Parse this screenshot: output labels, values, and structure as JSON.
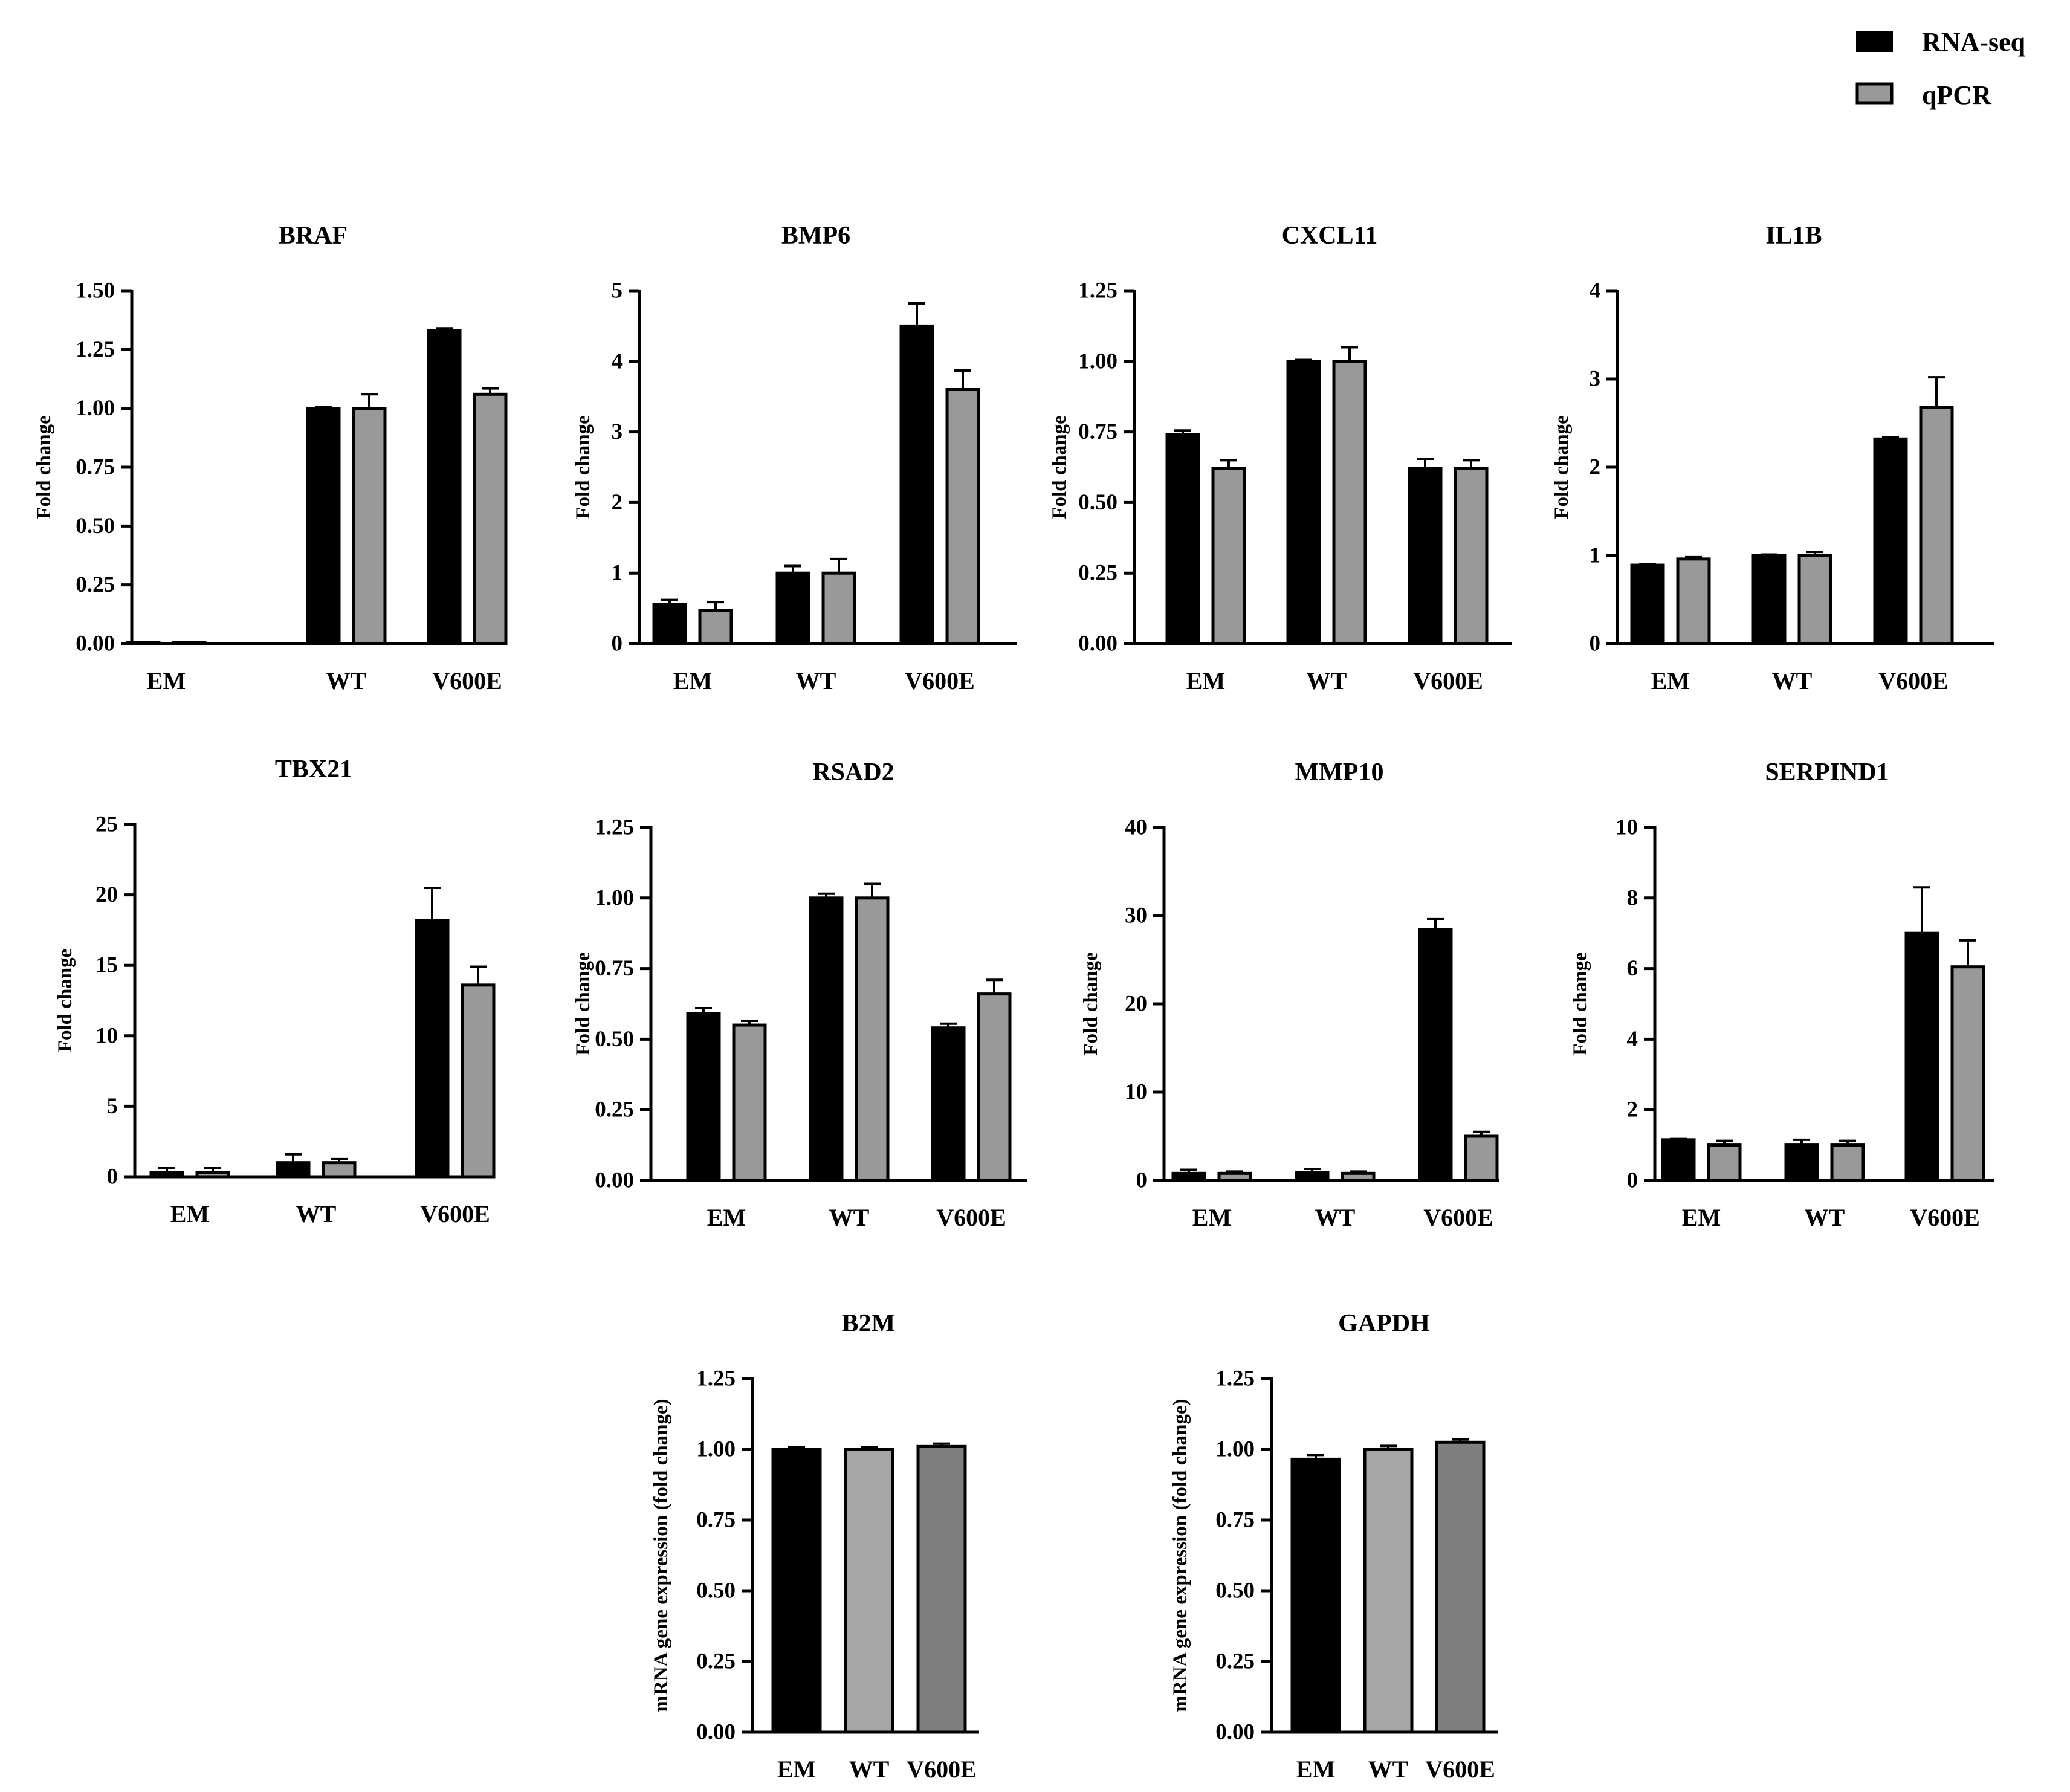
{
  "legend": {
    "items": [
      {
        "label": "RNA-seq",
        "color": "#000000"
      },
      {
        "label": "qPCR",
        "color": "#999999"
      }
    ]
  },
  "colors": {
    "rnaseq": "#000000",
    "qpcr": "#999999",
    "b2m_wt": "#a6a6a6",
    "b2m_v600e": "#7f7f7f"
  },
  "chart_data": [
    {
      "type": "bar",
      "title": "BRAF",
      "ylabel": "Fold change",
      "categories": [
        "EM",
        "WT",
        "V600E"
      ],
      "ylim": [
        0,
        1.5
      ],
      "yticks": [
        0,
        0.25,
        0.5,
        0.75,
        1.0,
        1.25,
        1.5
      ],
      "ytick_labels": [
        "0.00",
        "0.25",
        "0.50",
        "0.75",
        "1.00",
        "1.25",
        "1.50"
      ],
      "series": [
        {
          "name": "RNA-seq",
          "values": [
            0.003,
            1.0,
            1.33
          ],
          "errors": [
            0,
            0.005,
            0.01
          ]
        },
        {
          "name": "qPCR",
          "values": [
            0.0,
            1.0,
            1.06
          ],
          "errors": [
            0,
            0.06,
            0.025
          ]
        }
      ]
    },
    {
      "type": "bar",
      "title": "BMP6",
      "ylabel": "Fold change",
      "categories": [
        "EM",
        "WT",
        "V600E"
      ],
      "ylim": [
        0,
        5
      ],
      "yticks": [
        0,
        1,
        2,
        3,
        4,
        5
      ],
      "ytick_labels": [
        "0",
        "1",
        "2",
        "3",
        "4",
        "5"
      ],
      "series": [
        {
          "name": "RNA-seq",
          "values": [
            0.56,
            1.0,
            4.5
          ],
          "errors": [
            0.06,
            0.1,
            0.32
          ]
        },
        {
          "name": "qPCR",
          "values": [
            0.47,
            1.0,
            3.6
          ],
          "errors": [
            0.12,
            0.2,
            0.27
          ]
        }
      ]
    },
    {
      "type": "bar",
      "title": "CXCL11",
      "ylabel": "Fold change",
      "categories": [
        "EM",
        "WT",
        "V600E"
      ],
      "ylim": [
        0,
        1.25
      ],
      "yticks": [
        0,
        0.25,
        0.5,
        0.75,
        1.0,
        1.25
      ],
      "ytick_labels": [
        "0.00",
        "0.25",
        "0.50",
        "0.75",
        "1.00",
        "1.25"
      ],
      "series": [
        {
          "name": "RNA-seq",
          "values": [
            0.74,
            1.0,
            0.62
          ],
          "errors": [
            0.015,
            0.005,
            0.035
          ]
        },
        {
          "name": "qPCR",
          "values": [
            0.62,
            1.0,
            0.62
          ],
          "errors": [
            0.03,
            0.05,
            0.03
          ]
        }
      ]
    },
    {
      "type": "bar",
      "title": "IL1B",
      "ylabel": "Fold change",
      "categories": [
        "EM",
        "WT",
        "V600E"
      ],
      "ylim": [
        0,
        4
      ],
      "yticks": [
        0,
        1,
        2,
        3,
        4
      ],
      "ytick_labels": [
        "0",
        "1",
        "2",
        "3",
        "4"
      ],
      "series": [
        {
          "name": "RNA-seq",
          "values": [
            0.89,
            1.0,
            2.32
          ],
          "errors": [
            0.01,
            0.01,
            0.02
          ]
        },
        {
          "name": "qPCR",
          "values": [
            0.96,
            1.0,
            2.68
          ],
          "errors": [
            0.02,
            0.04,
            0.34
          ]
        }
      ]
    },
    {
      "type": "bar",
      "title": "TBX21",
      "ylabel": "Fold change",
      "categories": [
        "EM",
        "WT",
        "V600E"
      ],
      "ylim": [
        0,
        25
      ],
      "yticks": [
        0,
        5,
        10,
        15,
        20,
        25
      ],
      "ytick_labels": [
        "0",
        "5",
        "10",
        "15",
        "20",
        "25"
      ],
      "series": [
        {
          "name": "RNA-seq",
          "values": [
            0.3,
            1.0,
            18.2
          ],
          "errors": [
            0.3,
            0.6,
            2.3
          ]
        },
        {
          "name": "qPCR",
          "values": [
            0.3,
            1.0,
            13.6
          ],
          "errors": [
            0.3,
            0.25,
            1.3
          ]
        }
      ]
    },
    {
      "type": "bar",
      "title": "RSAD2",
      "ylabel": "Fold change",
      "categories": [
        "EM",
        "WT",
        "V600E"
      ],
      "ylim": [
        0,
        1.25
      ],
      "yticks": [
        0,
        0.25,
        0.5,
        0.75,
        1.0,
        1.25
      ],
      "ytick_labels": [
        "0.00",
        "0.25",
        "0.50",
        "0.75",
        "1.00",
        "1.25"
      ],
      "series": [
        {
          "name": "RNA-seq",
          "values": [
            0.59,
            1.0,
            0.54
          ],
          "errors": [
            0.02,
            0.015,
            0.015
          ]
        },
        {
          "name": "qPCR",
          "values": [
            0.55,
            1.0,
            0.66
          ],
          "errors": [
            0.015,
            0.05,
            0.05
          ]
        }
      ]
    },
    {
      "type": "bar",
      "title": "MMP10",
      "ylabel": "Fold change",
      "categories": [
        "EM",
        "WT",
        "V600E"
      ],
      "ylim": [
        0,
        40
      ],
      "yticks": [
        0,
        10,
        20,
        30,
        40
      ],
      "ytick_labels": [
        "0",
        "10",
        "20",
        "30",
        "40"
      ],
      "series": [
        {
          "name": "RNA-seq",
          "values": [
            0.8,
            0.9,
            28.4
          ],
          "errors": [
            0.4,
            0.4,
            1.2
          ]
        },
        {
          "name": "qPCR",
          "values": [
            0.8,
            0.8,
            5.0
          ],
          "errors": [
            0.2,
            0.2,
            0.5
          ]
        }
      ]
    },
    {
      "type": "bar",
      "title": "SERPIND1",
      "ylabel": "Fold change",
      "categories": [
        "EM",
        "WT",
        "V600E"
      ],
      "ylim": [
        0,
        10
      ],
      "yticks": [
        0,
        2,
        4,
        6,
        8,
        10
      ],
      "ytick_labels": [
        "0",
        "2",
        "4",
        "6",
        "8",
        "10"
      ],
      "series": [
        {
          "name": "RNA-seq",
          "values": [
            1.15,
            1.0,
            7.0
          ],
          "errors": [
            0.02,
            0.15,
            1.3
          ]
        },
        {
          "name": "qPCR",
          "values": [
            1.0,
            1.0,
            6.05
          ],
          "errors": [
            0.12,
            0.12,
            0.75
          ]
        }
      ]
    },
    {
      "type": "bar",
      "title": "B2M",
      "ylabel": "mRNA gene expression (fold change)",
      "categories": [
        "EM",
        "WT",
        "V600E"
      ],
      "ylim": [
        0,
        1.25
      ],
      "yticks": [
        0,
        0.25,
        0.5,
        0.75,
        1.0,
        1.25
      ],
      "ytick_labels": [
        "0.00",
        "0.25",
        "0.50",
        "0.75",
        "1.00",
        "1.25"
      ],
      "series": [
        {
          "name": "mRNA gene expression",
          "values": [
            1.0,
            1.0,
            1.01
          ],
          "errors": [
            0.008,
            0.008,
            0.01
          ]
        }
      ]
    },
    {
      "type": "bar",
      "title": "GAPDH",
      "ylabel": "mRNA gene expression (fold change)",
      "categories": [
        "EM",
        "WT",
        "V600E"
      ],
      "ylim": [
        0,
        1.25
      ],
      "yticks": [
        0,
        0.25,
        0.5,
        0.75,
        1.0,
        1.25
      ],
      "ytick_labels": [
        "0.00",
        "0.25",
        "0.50",
        "0.75",
        "1.00",
        "1.25"
      ],
      "series": [
        {
          "name": "mRNA gene expression",
          "values": [
            0.965,
            1.0,
            1.025
          ],
          "errors": [
            0.015,
            0.012,
            0.01
          ]
        }
      ]
    }
  ]
}
